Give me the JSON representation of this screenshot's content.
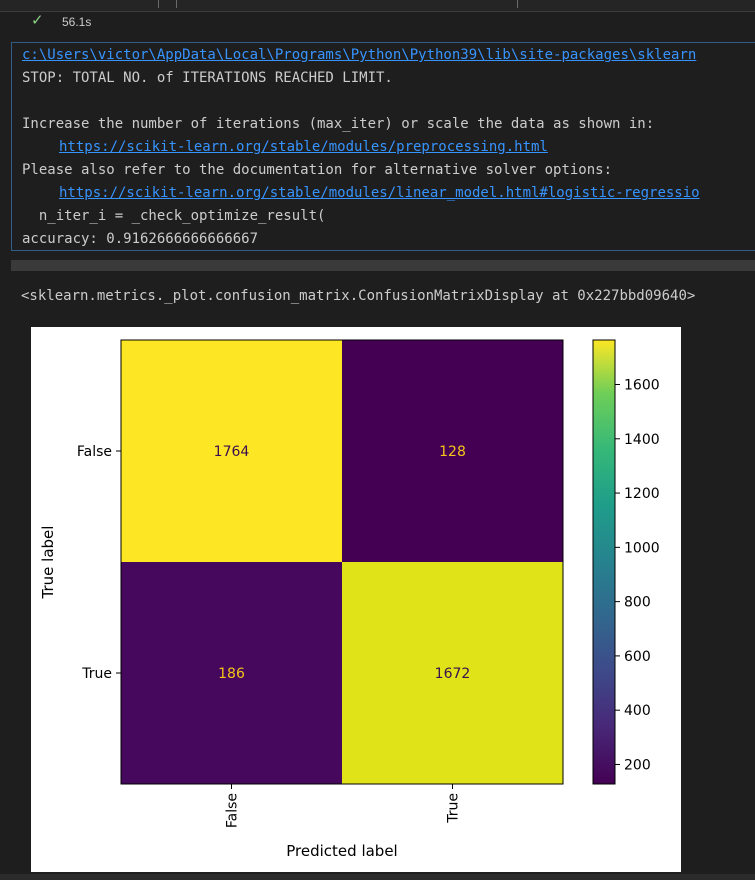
{
  "cell": {
    "status_icon": "check-icon",
    "exec_time": "56.1s"
  },
  "stderr": {
    "path_link": "c:\\Users\\victor\\AppData\\Local\\Programs\\Python\\Python39\\lib\\site-packages\\sklearn",
    "stop_line": "STOP: TOTAL NO. of ITERATIONS REACHED LIMIT.",
    "increase_line": "Increase the number of iterations (max_iter) or scale the data as shown in:",
    "preproc_link": "https://scikit-learn.org/stable/modules/preprocessing.html",
    "refer_line": "Please also refer to the documentation for alternative solver options:",
    "solver_link": "https://scikit-learn.org/stable/modules/linear_model.html#logistic-regressio",
    "n_iter_line": "  n_iter_i = _check_optimize_result(",
    "accuracy_line": "accuracy: 0.9162666666666667"
  },
  "repr_line": "<sklearn.metrics._plot.confusion_matrix.ConfusionMatrixDisplay at 0x227bbd09640>",
  "chart_data": {
    "type": "heatmap",
    "title": "",
    "xlabel": "Predicted label",
    "ylabel": "True label",
    "x_categories": [
      "False",
      "True"
    ],
    "y_categories": [
      "False",
      "True"
    ],
    "values": [
      [
        1764,
        128
      ],
      [
        186,
        1672
      ]
    ],
    "colormap": "viridis",
    "colorbar_ticks": [
      200,
      400,
      600,
      800,
      1000,
      1200,
      1400,
      1600
    ],
    "colorbar_range": [
      128,
      1764
    ],
    "cell_colors": {
      "1764": "#fde725",
      "128": "#440154",
      "186": "#46085c",
      "1672": "#dfe318"
    },
    "text_colors": {
      "dark_cell": "#f5c518",
      "light_cell": "#3b0f4f"
    }
  }
}
